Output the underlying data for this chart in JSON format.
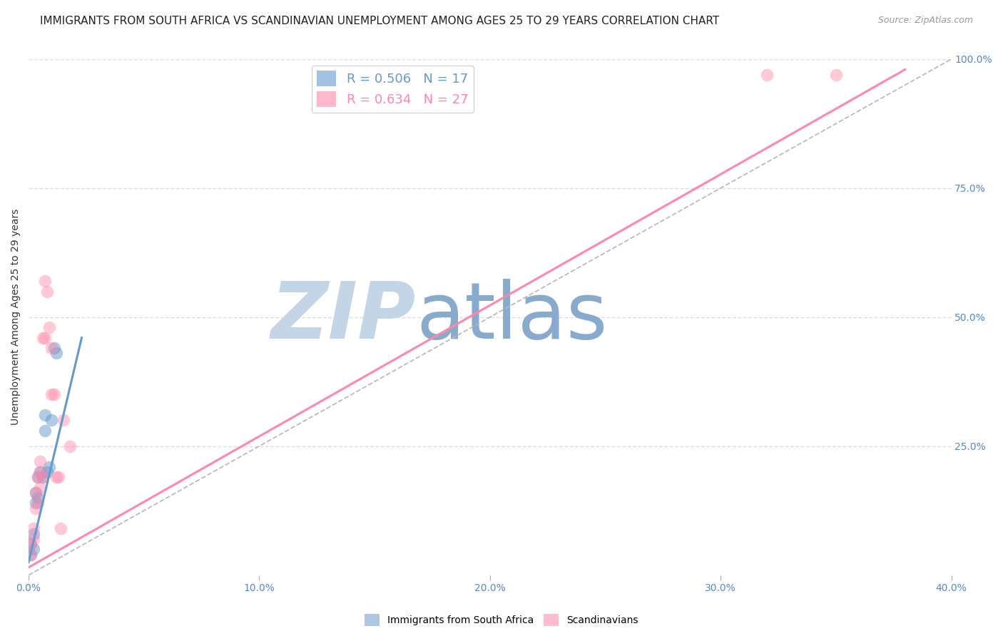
{
  "title": "IMMIGRANTS FROM SOUTH AFRICA VS SCANDINAVIAN UNEMPLOYMENT AMONG AGES 25 TO 29 YEARS CORRELATION CHART",
  "source": "Source: ZipAtlas.com",
  "ylabel": "Unemployment Among Ages 25 to 29 years",
  "xlim": [
    0.0,
    0.4
  ],
  "ylim": [
    0.0,
    1.0
  ],
  "xticks": [
    0.0,
    0.1,
    0.2,
    0.3,
    0.4
  ],
  "xtick_labels": [
    "0.0%",
    "10.0%",
    "20.0%",
    "30.0%",
    "40.0%"
  ],
  "yticks_right": [
    0.25,
    0.5,
    0.75,
    1.0
  ],
  "ytick_labels_right": [
    "25.0%",
    "50.0%",
    "75.0%",
    "100.0%"
  ],
  "blue_R": 0.506,
  "blue_N": 17,
  "pink_R": 0.634,
  "pink_N": 27,
  "blue_color": "#6699CC",
  "pink_color": "#FF88AA",
  "blue_label": "Immigrants from South Africa",
  "pink_label": "Scandinavians",
  "blue_scatter_x": [
    0.001,
    0.001,
    0.002,
    0.002,
    0.003,
    0.003,
    0.004,
    0.004,
    0.005,
    0.006,
    0.007,
    0.007,
    0.008,
    0.009,
    0.01,
    0.011,
    0.012
  ],
  "blue_scatter_y": [
    0.04,
    0.06,
    0.05,
    0.08,
    0.14,
    0.16,
    0.15,
    0.19,
    0.2,
    0.19,
    0.28,
    0.31,
    0.2,
    0.21,
    0.3,
    0.44,
    0.43
  ],
  "pink_scatter_x": [
    0.001,
    0.001,
    0.002,
    0.002,
    0.003,
    0.003,
    0.004,
    0.004,
    0.005,
    0.005,
    0.005,
    0.006,
    0.006,
    0.007,
    0.007,
    0.008,
    0.009,
    0.01,
    0.01,
    0.011,
    0.012,
    0.013,
    0.014,
    0.015,
    0.018,
    0.32,
    0.35
  ],
  "pink_scatter_y": [
    0.04,
    0.06,
    0.07,
    0.09,
    0.13,
    0.16,
    0.14,
    0.19,
    0.22,
    0.17,
    0.2,
    0.46,
    0.19,
    0.46,
    0.57,
    0.55,
    0.48,
    0.44,
    0.35,
    0.35,
    0.19,
    0.19,
    0.09,
    0.3,
    0.25,
    0.97,
    0.97
  ],
  "blue_line_x": [
    0.0,
    0.023
  ],
  "blue_line_y": [
    0.025,
    0.46
  ],
  "pink_line_x": [
    0.0,
    0.38
  ],
  "pink_line_y": [
    0.015,
    0.98
  ],
  "diag_line_x": [
    0.0,
    0.4
  ],
  "diag_line_y": [
    0.0,
    1.0
  ],
  "watermark_zip": "ZIP",
  "watermark_atlas": "atlas",
  "watermark_color_zip": "#C5D5E8",
  "watermark_color_atlas": "#88AACC",
  "background_color": "#FFFFFF",
  "grid_color": "#DDDDDD",
  "title_fontsize": 11,
  "label_fontsize": 10,
  "tick_fontsize": 10,
  "legend_fontsize": 13,
  "axis_color": "#5588CC"
}
